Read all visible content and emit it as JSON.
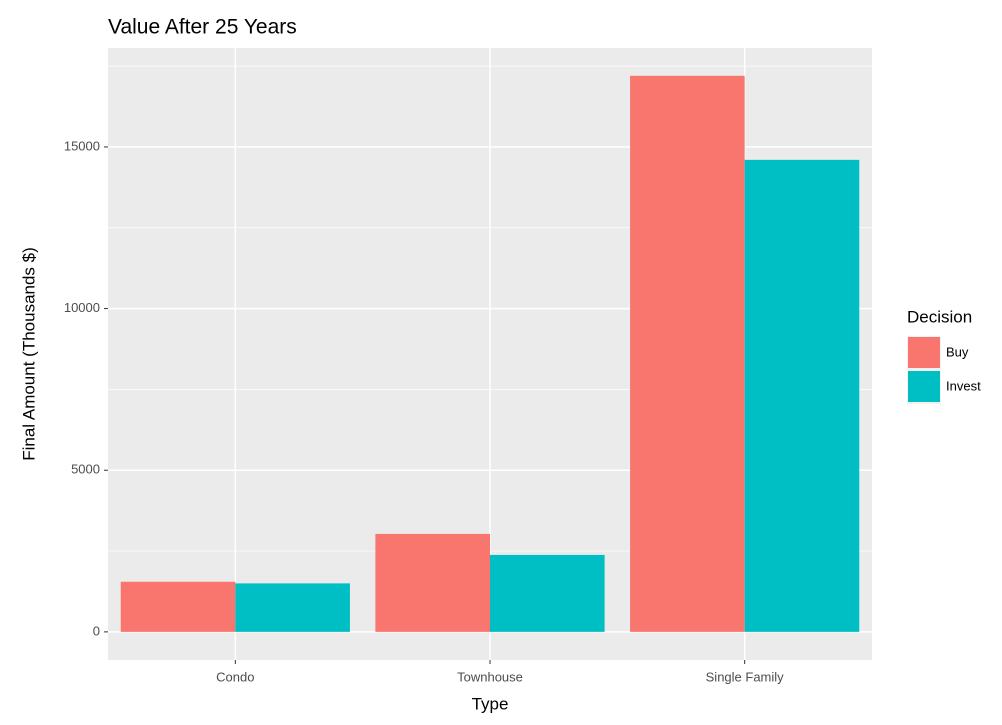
{
  "chart_data": {
    "type": "bar",
    "title": "Value After 25 Years",
    "x_label": "Type",
    "y_label": "Final Amount (Thousands $)",
    "categories": [
      "Condo",
      "Townhouse",
      "Single Family"
    ],
    "series": [
      {
        "name": "Buy",
        "color": "#F8766D",
        "values": [
          1550,
          3030,
          17200
        ]
      },
      {
        "name": "Invest",
        "color": "#00BFC4",
        "values": [
          1500,
          2380,
          14600
        ]
      }
    ],
    "ylim": [
      -870,
      18060
    ],
    "yticks": [
      0,
      5000,
      10000,
      15000
    ],
    "minor_yticks": [
      2500,
      7500,
      12500,
      17500
    ],
    "grid": true,
    "legend_title": "Decision",
    "legend_position": "right"
  }
}
